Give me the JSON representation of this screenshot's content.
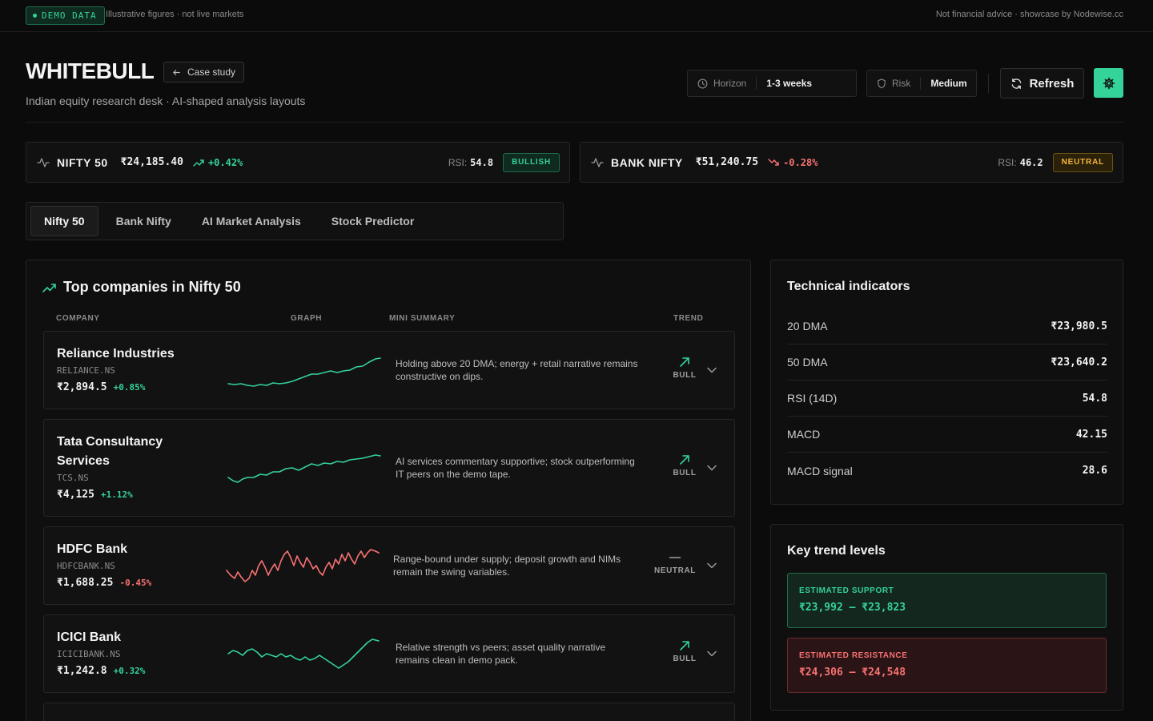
{
  "banner": {
    "badge": "DEMO DATA",
    "note": "Illustrative figures · not live markets",
    "right": "Not financial advice · showcase by Nodewise.cc"
  },
  "header": {
    "brand": "WHITEBULL",
    "case_study": "Case study",
    "subtitle": "Indian equity research desk · AI-shaped analysis layouts",
    "horizon_label": "Horizon",
    "horizon_value": "1-3 weeks",
    "risk_label": "Risk",
    "risk_value": "Medium",
    "refresh": "Refresh"
  },
  "indices": [
    {
      "name": "NIFTY 50",
      "price": "₹24,185.40",
      "change": "+0.42%",
      "direction": "up",
      "rsi_label": "RSI:",
      "rsi": "54.8",
      "signal": "BULLISH"
    },
    {
      "name": "BANK NIFTY",
      "price": "₹51,240.75",
      "change": "-0.28%",
      "direction": "down",
      "rsi_label": "RSI:",
      "rsi": "46.2",
      "signal": "NEUTRAL"
    }
  ],
  "tabs": [
    "Nifty 50",
    "Bank Nifty",
    "AI Market Analysis",
    "Stock Predictor"
  ],
  "active_tab": "Nifty 50",
  "companies": {
    "title": "Top companies in Nifty 50",
    "columns": [
      "COMPANY",
      "GRAPH",
      "MINI SUMMARY",
      "TREND"
    ],
    "rows": [
      {
        "name": "Reliance Industries",
        "symbol": "RELIANCE.NS",
        "price": "₹2,894.5",
        "change": "+0.85%",
        "summary": "Holding above 20 DMA; energy + retail narrative remains constructive on dips.",
        "trend": "BULL"
      },
      {
        "name": "Tata Consultancy Services",
        "symbol": "TCS.NS",
        "price": "₹4,125",
        "change": "+1.12%",
        "summary": "AI services commentary supportive; stock outperforming IT peers on the demo tape.",
        "trend": "BULL"
      },
      {
        "name": "HDFC Bank",
        "symbol": "HDFCBANK.NS",
        "price": "₹1,688.25",
        "change": "-0.45%",
        "summary": "Range-bound under supply; deposit growth and NIMs remain the swing variables.",
        "trend": "NEUTRAL"
      },
      {
        "name": "ICICI Bank",
        "symbol": "ICICIBANK.NS",
        "price": "₹1,242.8",
        "change": "+0.32%",
        "summary": "Relative strength vs peers; asset quality narrative remains clean in demo pack.",
        "trend": "BULL"
      }
    ]
  },
  "technical": {
    "title": "Technical indicators",
    "items": [
      {
        "label": "20 DMA",
        "value": "₹23,980.5"
      },
      {
        "label": "50 DMA",
        "value": "₹23,640.2"
      },
      {
        "label": "RSI (14D)",
        "value": "54.8"
      },
      {
        "label": "MACD",
        "value": "42.15"
      },
      {
        "label": "MACD signal",
        "value": "28.6"
      }
    ]
  },
  "levels": {
    "title": "Key trend levels",
    "support_label": "ESTIMATED SUPPORT",
    "support_range": "₹23,992 – ₹23,823",
    "resistance_label": "ESTIMATED RESISTANCE",
    "resistance_range": "₹24,306 – ₹24,548"
  },
  "colors": {
    "accent": "#34d399",
    "negative": "#f87171",
    "neutral": "#f5b43b",
    "background": "#0b0b0b"
  }
}
